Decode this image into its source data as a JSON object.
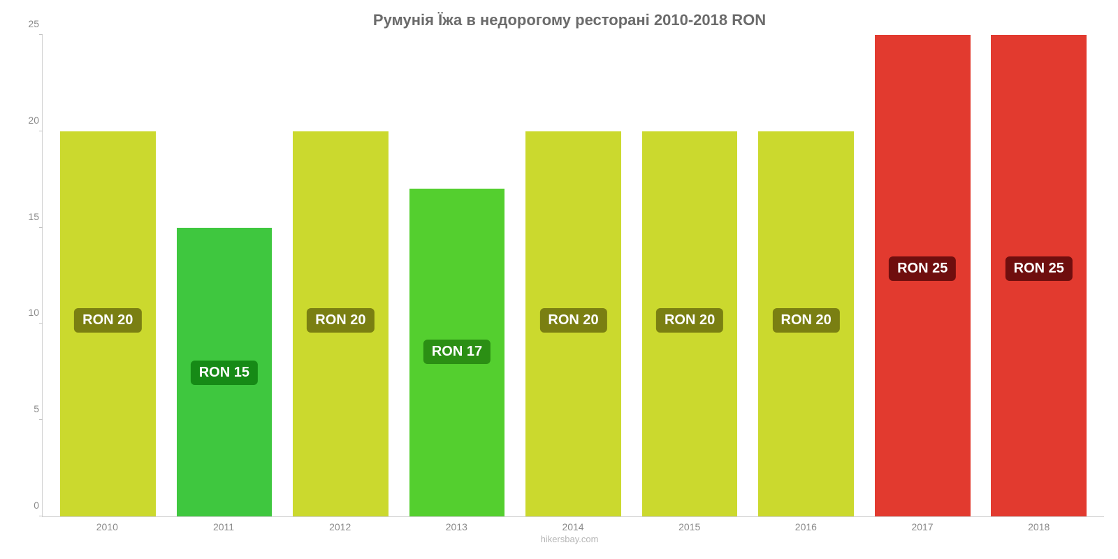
{
  "chart": {
    "type": "bar",
    "title": "Румунія Їжа в недорогому ресторані 2010-2018 RON",
    "title_fontsize": 22,
    "title_color": "#6b6b6b",
    "categories": [
      "2010",
      "2011",
      "2012",
      "2013",
      "2014",
      "2015",
      "2016",
      "2017",
      "2018"
    ],
    "values": [
      20,
      15,
      20,
      17,
      20,
      20,
      20,
      25,
      25
    ],
    "value_labels": [
      "RON 20",
      "RON 15",
      "RON 20",
      "RON 17",
      "RON 20",
      "RON 20",
      "RON 20",
      "RON 25",
      "RON 25"
    ],
    "bar_colors": [
      "#cbd92e",
      "#3fc73f",
      "#cbd92e",
      "#54cf2f",
      "#cbd92e",
      "#cbd92e",
      "#cbd92e",
      "#e23a2f",
      "#e23a2f"
    ],
    "label_bg_colors": [
      "#7a7f12",
      "#168a16",
      "#7a7f12",
      "#2b8f14",
      "#7a7f12",
      "#7a7f12",
      "#7a7f12",
      "#6f0e0e",
      "#6f0e0e"
    ],
    "label_text_color": "#ffffff",
    "ylim": [
      0,
      25
    ],
    "ytick_step": 5,
    "bar_width": 0.82,
    "background_color": "#ffffff",
    "axis_color": "#d0d0d0",
    "tick_label_color": "#8a8a8a",
    "tick_label_fontsize": 14,
    "data_label_fontsize": 20,
    "footer": "hikersbay.com",
    "footer_color": "#b5b5b5",
    "footer_fontsize": 13
  }
}
